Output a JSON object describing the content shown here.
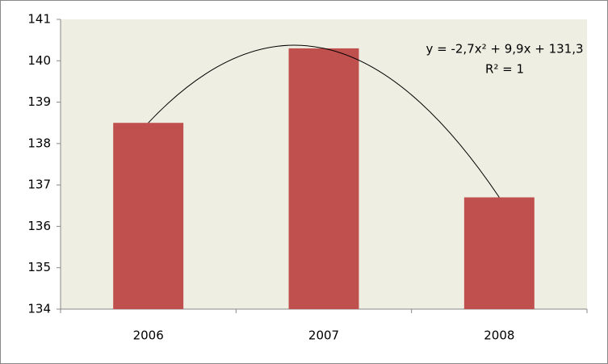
{
  "chart_data": {
    "type": "bar",
    "categories": [
      "2006",
      "2007",
      "2008"
    ],
    "values": [
      138.5,
      140.3,
      136.7
    ],
    "color": "#c0504d",
    "ylim": [
      134,
      141
    ],
    "yticks": [
      134,
      135,
      136,
      137,
      138,
      139,
      140,
      141
    ],
    "grid": false,
    "trendline": {
      "type": "polynomial",
      "color": "#000000"
    },
    "annotations": [
      "y = -2,7x² + 9,9x + 131,3",
      "R² = 1"
    ]
  }
}
